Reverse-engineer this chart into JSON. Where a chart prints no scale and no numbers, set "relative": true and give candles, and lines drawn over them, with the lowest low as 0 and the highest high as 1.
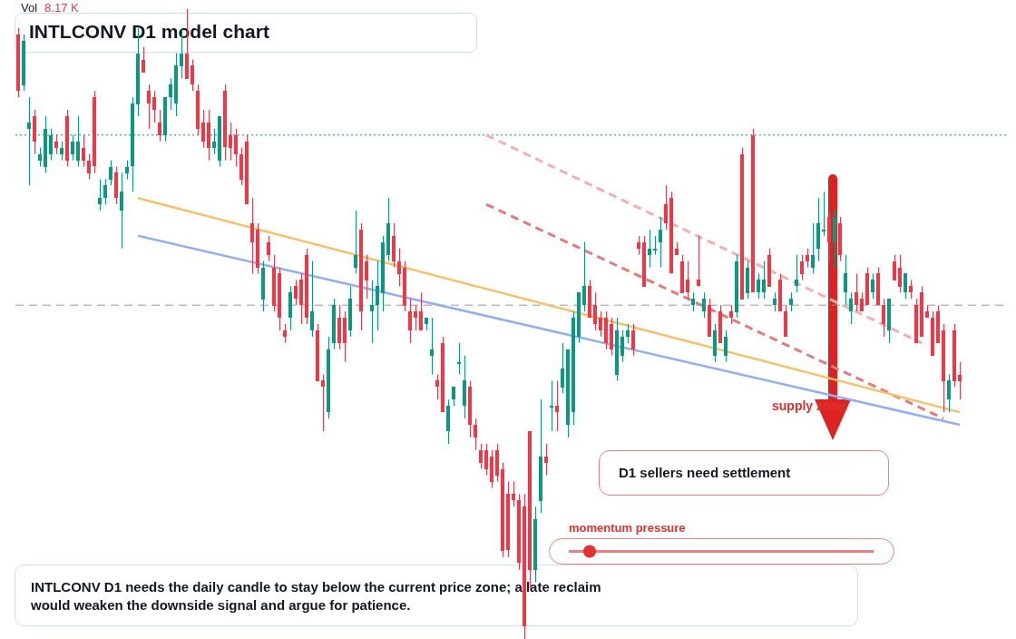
{
  "chart_data": {
    "type": "candlestick",
    "title": "INTLCONV D1 model chart",
    "relative": true,
    "legend": false,
    "categories": [
      null,
      null,
      null,
      null,
      null,
      null,
      null,
      null,
      null,
      null,
      null,
      null,
      null,
      null,
      null,
      null,
      null,
      null,
      null,
      null,
      null,
      null,
      null,
      null,
      null,
      null,
      null,
      null,
      null,
      null,
      null,
      null,
      null,
      null,
      null,
      null,
      null,
      null,
      null,
      null,
      null,
      null,
      null,
      null,
      null,
      null,
      null,
      null,
      null,
      null,
      null,
      null,
      null,
      null,
      null,
      null,
      null,
      null,
      null,
      null,
      null,
      null,
      null,
      null,
      null,
      null,
      null,
      null,
      null,
      null,
      null,
      null,
      null,
      null,
      null,
      null,
      null,
      null,
      null,
      null,
      null,
      null,
      null,
      null,
      null,
      null,
      null,
      null,
      null,
      null,
      null,
      null,
      null,
      null,
      null,
      null,
      null,
      null,
      null,
      null,
      null,
      null,
      null,
      null,
      null,
      null,
      null,
      null,
      null,
      null,
      null,
      null,
      null,
      null,
      null,
      null,
      null,
      null,
      null,
      null,
      null,
      null,
      null,
      null,
      null,
      null,
      null,
      null,
      null,
      null,
      null,
      null,
      null,
      null,
      null,
      null,
      null,
      null,
      null,
      null,
      null,
      null,
      null,
      null,
      null,
      null,
      null,
      null,
      null,
      null,
      null,
      null,
      null,
      null,
      null,
      null,
      null,
      null,
      null,
      null,
      null,
      null,
      null,
      null,
      null,
      null,
      null,
      null,
      null,
      null,
      null,
      null,
      null,
      null
    ],
    "ohlc": [
      [
        0.96,
        0.97,
        0.86,
        0.87
      ],
      [
        0.88,
        0.96,
        0.87,
        0.95
      ],
      [
        0.81,
        0.86,
        0.72,
        0.82
      ],
      [
        0.83,
        0.84,
        0.77,
        0.79
      ],
      [
        0.76,
        0.78,
        0.75,
        0.77
      ],
      [
        0.75,
        0.83,
        0.74,
        0.81
      ],
      [
        0.77,
        0.81,
        0.76,
        0.8
      ],
      [
        0.79,
        0.8,
        0.77,
        0.78
      ],
      [
        0.77,
        0.79,
        0.76,
        0.78
      ],
      [
        0.83,
        0.84,
        0.75,
        0.76
      ],
      [
        0.77,
        0.8,
        0.76,
        0.79
      ],
      [
        0.76,
        0.83,
        0.75,
        0.79
      ],
      [
        0.78,
        0.8,
        0.75,
        0.76
      ],
      [
        0.76,
        0.77,
        0.73,
        0.74
      ],
      [
        0.86,
        0.87,
        0.74,
        0.75
      ],
      [
        0.69,
        0.73,
        0.68,
        0.7
      ],
      [
        0.7,
        0.73,
        0.69,
        0.72
      ],
      [
        0.73,
        0.76,
        0.72,
        0.75
      ],
      [
        0.74,
        0.75,
        0.69,
        0.7
      ],
      [
        0.68,
        0.74,
        0.62,
        0.71
      ],
      [
        0.74,
        0.76,
        0.73,
        0.75
      ],
      [
        0.75,
        0.86,
        0.71,
        0.85
      ],
      [
        0.85,
        0.97,
        0.83,
        0.93
      ],
      [
        0.92,
        0.94,
        0.9,
        0.9
      ],
      [
        0.87,
        0.88,
        0.81,
        0.85
      ],
      [
        0.86,
        0.87,
        0.82,
        0.84
      ],
      [
        0.82,
        0.84,
        0.79,
        0.8
      ],
      [
        0.8,
        0.86,
        0.79,
        0.86
      ],
      [
        0.86,
        0.89,
        0.84,
        0.88
      ],
      [
        0.85,
        0.93,
        0.83,
        0.91
      ],
      [
        0.91,
        0.97,
        0.89,
        0.93
      ],
      [
        0.93,
        1.0,
        0.89,
        0.89
      ],
      [
        0.91,
        0.92,
        0.87,
        0.88
      ],
      [
        0.87,
        0.88,
        0.8,
        0.81
      ],
      [
        0.82,
        0.84,
        0.78,
        0.79
      ],
      [
        0.82,
        0.84,
        0.76,
        0.78
      ],
      [
        0.78,
        0.81,
        0.77,
        0.79
      ],
      [
        0.76,
        0.83,
        0.75,
        0.83
      ],
      [
        0.87,
        0.88,
        0.76,
        0.78
      ],
      [
        0.8,
        0.82,
        0.76,
        0.78
      ],
      [
        0.8,
        0.81,
        0.75,
        0.77
      ],
      [
        0.77,
        0.78,
        0.72,
        0.73
      ],
      [
        0.79,
        0.8,
        0.69,
        0.69
      ],
      [
        0.66,
        0.7,
        0.58,
        0.63
      ],
      [
        0.65,
        0.66,
        0.58,
        0.59
      ],
      [
        0.54,
        0.6,
        0.52,
        0.59
      ],
      [
        0.63,
        0.64,
        0.6,
        0.61
      ],
      [
        0.59,
        0.61,
        0.52,
        0.53
      ],
      [
        0.58,
        0.59,
        0.49,
        0.51
      ],
      [
        0.49,
        0.5,
        0.47,
        0.48
      ],
      [
        0.51,
        0.56,
        0.49,
        0.55
      ],
      [
        0.56,
        0.57,
        0.53,
        0.54
      ],
      [
        0.57,
        0.58,
        0.5,
        0.53
      ],
      [
        0.61,
        0.62,
        0.5,
        0.51
      ],
      [
        0.49,
        0.6,
        0.48,
        0.52
      ],
      [
        0.49,
        0.5,
        0.41,
        0.41
      ],
      [
        0.41,
        0.42,
        0.33,
        0.4
      ],
      [
        0.36,
        0.48,
        0.35,
        0.46
      ],
      [
        0.47,
        0.54,
        0.46,
        0.53
      ],
      [
        0.51,
        0.53,
        0.46,
        0.47
      ],
      [
        0.51,
        0.52,
        0.44,
        0.47
      ],
      [
        0.49,
        0.56,
        0.48,
        0.54
      ],
      [
        0.59,
        0.68,
        0.58,
        0.61
      ],
      [
        0.65,
        0.66,
        0.49,
        0.52
      ],
      [
        0.6,
        0.61,
        0.54,
        0.57
      ],
      [
        0.52,
        0.57,
        0.47,
        0.53
      ],
      [
        0.53,
        0.6,
        0.49,
        0.56
      ],
      [
        0.55,
        0.64,
        0.52,
        0.63
      ],
      [
        0.61,
        0.7,
        0.6,
        0.66
      ],
      [
        0.64,
        0.66,
        0.59,
        0.6
      ],
      [
        0.6,
        0.62,
        0.56,
        0.58
      ],
      [
        0.59,
        0.6,
        0.52,
        0.53
      ],
      [
        0.52,
        0.54,
        0.47,
        0.49
      ],
      [
        0.52,
        0.53,
        0.49,
        0.51
      ],
      [
        0.52,
        0.55,
        0.49,
        0.49
      ],
      [
        0.5,
        0.51,
        0.49,
        0.51
      ],
      [
        0.45,
        0.51,
        0.42,
        0.46
      ],
      [
        0.41,
        0.42,
        0.38,
        0.4
      ],
      [
        0.47,
        0.48,
        0.36,
        0.36
      ],
      [
        0.33,
        0.38,
        0.31,
        0.37
      ],
      [
        0.38,
        0.4,
        0.37,
        0.4
      ],
      [
        0.44,
        0.47,
        0.42,
        0.44
      ],
      [
        0.37,
        0.45,
        0.35,
        0.41
      ],
      [
        0.4,
        0.41,
        0.32,
        0.34
      ],
      [
        0.34,
        0.35,
        0.3,
        0.32
      ],
      [
        0.3,
        0.31,
        0.27,
        0.28
      ],
      [
        0.3,
        0.31,
        0.26,
        0.27
      ],
      [
        0.29,
        0.3,
        0.24,
        0.25
      ],
      [
        0.3,
        0.31,
        0.25,
        0.26
      ],
      [
        0.27,
        0.28,
        0.13,
        0.14
      ],
      [
        0.23,
        0.25,
        0.13,
        0.14
      ],
      [
        0.23,
        0.25,
        0.21,
        0.22
      ],
      [
        0.22,
        0.23,
        0.11,
        0.12
      ],
      [
        0.21,
        0.23,
        0,
        0.02
      ],
      [
        0.33,
        0.33,
        0.08,
        0.11
      ],
      [
        0.11,
        0.21,
        0.09,
        0.19
      ],
      [
        0.22,
        0.38,
        0.2,
        0.29
      ],
      [
        0.29,
        0.31,
        0.26,
        0.28
      ],
      [
        0.37,
        0.41,
        0.33,
        0.37
      ],
      [
        0.37,
        0.41,
        0.33,
        0.36
      ],
      [
        0.4,
        0.47,
        0.39,
        0.43
      ],
      [
        0.34,
        0.46,
        0.32,
        0.46
      ],
      [
        0.36,
        0.52,
        0.34,
        0.51
      ],
      [
        0.48,
        0.55,
        0.47,
        0.55
      ],
      [
        0.53,
        0.63,
        0.52,
        0.56
      ],
      [
        0.56,
        0.57,
        0.51,
        0.51
      ],
      [
        0.53,
        0.55,
        0.49,
        0.5
      ],
      [
        0.51,
        0.52,
        0.48,
        0.49
      ],
      [
        0.51,
        0.52,
        0.46,
        0.47
      ],
      [
        0.5,
        0.51,
        0.45,
        0.46
      ],
      [
        0.42,
        0.51,
        0.41,
        0.49
      ],
      [
        0.45,
        0.49,
        0.44,
        0.48
      ],
      [
        0.48,
        0.5,
        0.47,
        0.49
      ],
      [
        0.49,
        0.5,
        0.45,
        0.46
      ],
      [
        0.63,
        0.64,
        0.61,
        0.62
      ],
      [
        0.63,
        0.64,
        0.56,
        0.56
      ],
      [
        0.61,
        0.65,
        0.59,
        0.62
      ],
      [
        0.62,
        0.64,
        0.61,
        0.62
      ],
      [
        0.63,
        0.67,
        0.59,
        0.65
      ],
      [
        0.69,
        0.72,
        0.65,
        0.66
      ],
      [
        0.7,
        0.71,
        0.58,
        0.58
      ],
      [
        0.62,
        0.63,
        0.61,
        0.61
      ],
      [
        0.6,
        0.61,
        0.55,
        0.55
      ],
      [
        0.57,
        0.6,
        0.54,
        0.55
      ],
      [
        0.53,
        0.55,
        0.52,
        0.54
      ],
      [
        0.57,
        0.64,
        0.56,
        0.56
      ],
      [
        0.52,
        0.55,
        0.51,
        0.54
      ],
      [
        0.53,
        0.54,
        0.48,
        0.48
      ],
      [
        0.45,
        0.5,
        0.44,
        0.49
      ],
      [
        0.52,
        0.53,
        0.47,
        0.47
      ],
      [
        0.45,
        0.49,
        0.44,
        0.48
      ],
      [
        0.52,
        0.53,
        0.5,
        0.51
      ],
      [
        0.52,
        0.61,
        0.51,
        0.6
      ],
      [
        0.77,
        0.78,
        0.54,
        0.54
      ],
      [
        0.55,
        0.6,
        0.54,
        0.59
      ],
      [
        0.8,
        0.81,
        0.55,
        0.55
      ],
      [
        0.55,
        0.58,
        0.54,
        0.57
      ],
      [
        0.55,
        0.6,
        0.54,
        0.57
      ],
      [
        0.61,
        0.62,
        0.56,
        0.56
      ],
      [
        0.53,
        0.55,
        0.52,
        0.54
      ],
      [
        0.57,
        0.58,
        0.52,
        0.52
      ],
      [
        0.52,
        0.53,
        0.48,
        0.48
      ],
      [
        0.53,
        0.55,
        0.52,
        0.54
      ],
      [
        0.56,
        0.61,
        0.55,
        0.57
      ],
      [
        0.6,
        0.61,
        0.57,
        0.58
      ],
      [
        0.61,
        0.62,
        0.59,
        0.6
      ],
      [
        0.59,
        0.66,
        0.58,
        0.61
      ],
      [
        0.62,
        0.7,
        0.6,
        0.66
      ],
      [
        0.65,
        0.71,
        0.64,
        0.65
      ],
      [
        0.67,
        0.68,
        0.6,
        0.63
      ],
      [
        0.63,
        0.68,
        0.59,
        0.67
      ],
      [
        0.66,
        0.67,
        0.6,
        0.61
      ],
      [
        0.55,
        0.61,
        0.53,
        0.58
      ],
      [
        0.52,
        0.55,
        0.5,
        0.54
      ],
      [
        0.55,
        0.58,
        0.52,
        0.53
      ],
      [
        0.54,
        0.55,
        0.52,
        0.52
      ],
      [
        0.58,
        0.59,
        0.53,
        0.53
      ],
      [
        0.55,
        0.58,
        0.54,
        0.57
      ],
      [
        0.58,
        0.59,
        0.53,
        0.53
      ],
      [
        0.53,
        0.54,
        0.48,
        0.5
      ],
      [
        0.49,
        0.54,
        0.47,
        0.54
      ],
      [
        0.6,
        0.61,
        0.57,
        0.57
      ],
      [
        0.59,
        0.61,
        0.55,
        0.56
      ],
      [
        0.55,
        0.58,
        0.54,
        0.58
      ],
      [
        0.56,
        0.57,
        0.54,
        0.55
      ],
      [
        0.53,
        0.54,
        0.47,
        0.47
      ],
      [
        0.55,
        0.56,
        0.48,
        0.48
      ],
      [
        0.52,
        0.53,
        0.51,
        0.51
      ],
      [
        0.51,
        0.52,
        0.45,
        0.45
      ],
      [
        0.52,
        0.53,
        0.47,
        0.47
      ],
      [
        0.49,
        0.5,
        0.36,
        0.41
      ],
      [
        0.38,
        0.42,
        0.36,
        0.41
      ],
      [
        0.49,
        0.5,
        0.4,
        0.41
      ],
      [
        0.42,
        0.44,
        0.38,
        0.41
      ]
    ],
    "series": [
      {
        "type": "line",
        "color": "#f7c06a",
        "line_style": "solid",
        "values": [
          null,
          null,
          null,
          null,
          null,
          null,
          null,
          null,
          null,
          null,
          null,
          null,
          null,
          null,
          null,
          null,
          null,
          null,
          null,
          null,
          null,
          null,
          0.7,
          null,
          null,
          null,
          null,
          null,
          null,
          null,
          null,
          null,
          null,
          null,
          null,
          null,
          null,
          null,
          null,
          null,
          null,
          null,
          null,
          null,
          null,
          null,
          null,
          null,
          null,
          null,
          null,
          null,
          null,
          null,
          null,
          null,
          null,
          null,
          null,
          null,
          null,
          null,
          null,
          null,
          null,
          null,
          null,
          null,
          null,
          null,
          null,
          null,
          null,
          null,
          null,
          null,
          null,
          null,
          null,
          null,
          null,
          null,
          null,
          null,
          null,
          null,
          null,
          null,
          null,
          null,
          null,
          null,
          null,
          null,
          null,
          null,
          null,
          null,
          null,
          null,
          null,
          null,
          null,
          null,
          null,
          null,
          null,
          null,
          null,
          null,
          null,
          null,
          null,
          null,
          null,
          null,
          null,
          null,
          null,
          null,
          null,
          null,
          null,
          null,
          null,
          null,
          null,
          null,
          null,
          null,
          null,
          null,
          null,
          null,
          null,
          null,
          null,
          null,
          null,
          null,
          null,
          null,
          null,
          null,
          null,
          null,
          null,
          null,
          null,
          null,
          null,
          null,
          null,
          null,
          null,
          null,
          null,
          null,
          null,
          null,
          null,
          null,
          null,
          null,
          null,
          null,
          null,
          null,
          null,
          null,
          null,
          null,
          null,
          0.36
        ]
      },
      {
        "type": "line",
        "color": "#94aef2",
        "line_style": "solid",
        "values": [
          null,
          null,
          null,
          null,
          null,
          null,
          null,
          null,
          null,
          null,
          null,
          null,
          null,
          null,
          null,
          null,
          null,
          null,
          null,
          null,
          null,
          null,
          0.64,
          null,
          null,
          null,
          null,
          null,
          null,
          null,
          null,
          null,
          null,
          null,
          null,
          null,
          null,
          null,
          null,
          null,
          null,
          null,
          null,
          null,
          null,
          null,
          null,
          null,
          null,
          null,
          null,
          null,
          null,
          null,
          null,
          null,
          null,
          null,
          null,
          null,
          null,
          null,
          null,
          null,
          null,
          null,
          null,
          null,
          null,
          null,
          null,
          null,
          null,
          null,
          null,
          null,
          null,
          null,
          null,
          null,
          null,
          null,
          null,
          null,
          null,
          null,
          null,
          null,
          null,
          null,
          null,
          null,
          null,
          null,
          null,
          null,
          null,
          null,
          null,
          null,
          null,
          null,
          null,
          null,
          null,
          null,
          null,
          null,
          null,
          null,
          null,
          null,
          null,
          null,
          null,
          null,
          null,
          null,
          null,
          null,
          null,
          null,
          null,
          null,
          null,
          null,
          null,
          null,
          null,
          null,
          null,
          null,
          null,
          null,
          null,
          null,
          null,
          null,
          null,
          null,
          null,
          null,
          null,
          null,
          null,
          null,
          null,
          null,
          null,
          null,
          null,
          null,
          null,
          null,
          null,
          null,
          null,
          null,
          null,
          null,
          null,
          null,
          null,
          null,
          null,
          null,
          null,
          null,
          null,
          null,
          null,
          null,
          null,
          0.34
        ]
      },
      {
        "type": "line",
        "color": "#e97a7a",
        "line_style": "dashed",
        "values": [
          null,
          null,
          null,
          null,
          null,
          null,
          null,
          null,
          null,
          null,
          null,
          null,
          null,
          null,
          null,
          null,
          null,
          null,
          null,
          null,
          null,
          null,
          null,
          null,
          null,
          null,
          null,
          null,
          null,
          null,
          null,
          null,
          null,
          null,
          null,
          null,
          null,
          null,
          null,
          null,
          null,
          null,
          null,
          null,
          null,
          null,
          null,
          null,
          null,
          null,
          null,
          null,
          null,
          null,
          null,
          null,
          null,
          null,
          null,
          null,
          null,
          null,
          null,
          null,
          null,
          null,
          null,
          null,
          null,
          null,
          null,
          null,
          null,
          null,
          null,
          null,
          null,
          null,
          null,
          null,
          null,
          null,
          null,
          null,
          null,
          null,
          0.69,
          null,
          null,
          null,
          null,
          null,
          null,
          null,
          null,
          null,
          null,
          null,
          null,
          null,
          null,
          null,
          null,
          null,
          null,
          null,
          null,
          null,
          null,
          null,
          null,
          null,
          null,
          null,
          null,
          null,
          null,
          null,
          null,
          null,
          null,
          null,
          null,
          null,
          null,
          null,
          null,
          null,
          null,
          null,
          null,
          null,
          null,
          null,
          null,
          null,
          null,
          null,
          null,
          null,
          null,
          null,
          null,
          null,
          null,
          null,
          null,
          null,
          null,
          null,
          null,
          null,
          null,
          null,
          null,
          null,
          null,
          null,
          null,
          null,
          null,
          null,
          null,
          null,
          null,
          null,
          null,
          null,
          null,
          null,
          0.35,
          null,
          null,
          null
        ]
      },
      {
        "type": "line",
        "color": "#f4b0b0",
        "line_style": "dashed",
        "values": [
          null,
          null,
          null,
          null,
          null,
          null,
          null,
          null,
          null,
          null,
          null,
          null,
          null,
          null,
          null,
          null,
          null,
          null,
          null,
          null,
          null,
          null,
          null,
          null,
          null,
          null,
          null,
          null,
          null,
          null,
          null,
          null,
          null,
          null,
          null,
          null,
          null,
          null,
          null,
          null,
          null,
          null,
          null,
          null,
          null,
          null,
          null,
          null,
          null,
          null,
          null,
          null,
          null,
          null,
          null,
          null,
          null,
          null,
          null,
          null,
          null,
          null,
          null,
          null,
          null,
          null,
          null,
          null,
          null,
          null,
          null,
          null,
          null,
          null,
          null,
          null,
          null,
          null,
          null,
          null,
          null,
          null,
          null,
          null,
          null,
          null,
          0.8,
          null,
          null,
          null,
          null,
          null,
          null,
          null,
          null,
          null,
          null,
          null,
          null,
          null,
          null,
          null,
          null,
          null,
          null,
          null,
          null,
          null,
          null,
          null,
          null,
          null,
          null,
          null,
          null,
          null,
          null,
          null,
          null,
          null,
          null,
          null,
          null,
          null,
          null,
          null,
          null,
          null,
          null,
          null,
          null,
          null,
          null,
          null,
          null,
          null,
          null,
          null,
          null,
          null,
          null,
          null,
          null,
          null,
          null,
          null,
          null,
          null,
          null,
          null,
          null,
          null,
          null,
          null,
          null,
          null,
          null,
          null,
          null,
          null,
          null,
          null,
          null,
          null,
          null,
          null,
          0.47,
          null,
          null,
          null,
          null,
          null,
          null,
          null
        ]
      }
    ],
    "ref_lines": [
      {
        "axis": "y",
        "value": 0.8,
        "color": "#089981",
        "line_style": "dotted"
      },
      {
        "axis": "y",
        "value": 0.53,
        "color": "#999999",
        "line_style": "dashed"
      }
    ],
    "annotations": [
      "Vol 8.17 K",
      "D1 sellers need settlement",
      "supply zone",
      "momentum pressure",
      "INTLCONV D1 needs the daily candle to stay below the current price zone; a late reclaim would weaken the downside signal and argue for patience."
    ]
  }
}
